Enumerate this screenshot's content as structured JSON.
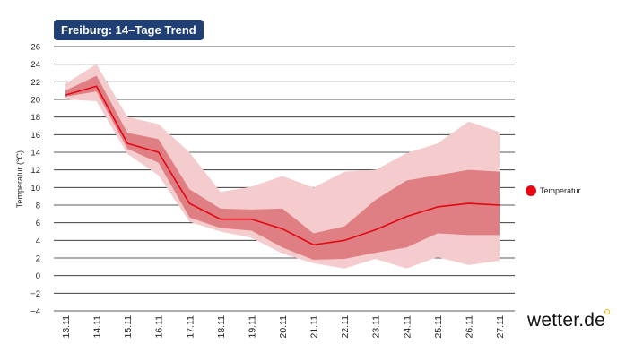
{
  "chart_data": {
    "type": "line",
    "title": "Freiburg: 14–Tage Trend",
    "ylabel": "Temperatur (°C)",
    "xlabel": "",
    "ylim": [
      -4,
      26
    ],
    "yticks": [
      -4,
      -2,
      0,
      2,
      4,
      6,
      8,
      10,
      12,
      14,
      16,
      18,
      20,
      22,
      24,
      26
    ],
    "categories": [
      "13.11",
      "14.11",
      "15.11",
      "16.11",
      "17.11",
      "18.11",
      "19.11",
      "20.11",
      "21.11",
      "22.11",
      "23.11",
      "24.11",
      "25.11",
      "26.11",
      "27.11"
    ],
    "series": [
      {
        "name": "Temperatur",
        "values": [
          20.5,
          21.5,
          15.0,
          14.0,
          8.2,
          6.4,
          6.4,
          5.3,
          3.5,
          4.0,
          5.2,
          6.7,
          7.8,
          8.2,
          8.0
        ]
      }
    ],
    "bands": [
      {
        "name": "outer range",
        "upper": [
          21.8,
          24.0,
          18.0,
          17.2,
          14.0,
          9.5,
          10.1,
          11.3,
          10.0,
          11.8,
          12.0,
          13.9,
          15.0,
          17.5,
          16.3
        ],
        "lower": [
          20.0,
          19.8,
          13.8,
          11.4,
          6.1,
          5.0,
          4.3,
          2.5,
          1.4,
          0.8,
          1.9,
          0.8,
          2.1,
          1.2,
          1.7
        ]
      },
      {
        "name": "inner range",
        "upper": [
          21.0,
          22.7,
          16.2,
          15.5,
          9.8,
          7.6,
          7.5,
          7.6,
          4.8,
          5.6,
          8.6,
          10.8,
          11.4,
          12.0,
          11.8
        ],
        "lower": [
          20.3,
          20.9,
          14.4,
          12.8,
          6.6,
          5.4,
          5.1,
          3.2,
          1.8,
          1.9,
          2.6,
          3.2,
          4.8,
          4.6,
          4.6
        ]
      }
    ],
    "legend": "right",
    "colors": {
      "line": "#e30613",
      "inner_band": "#e07f83",
      "outer_band": "#f5cccd",
      "grid": "#222222"
    }
  },
  "legend_label": "Temperatur",
  "brand": "wetter.de"
}
